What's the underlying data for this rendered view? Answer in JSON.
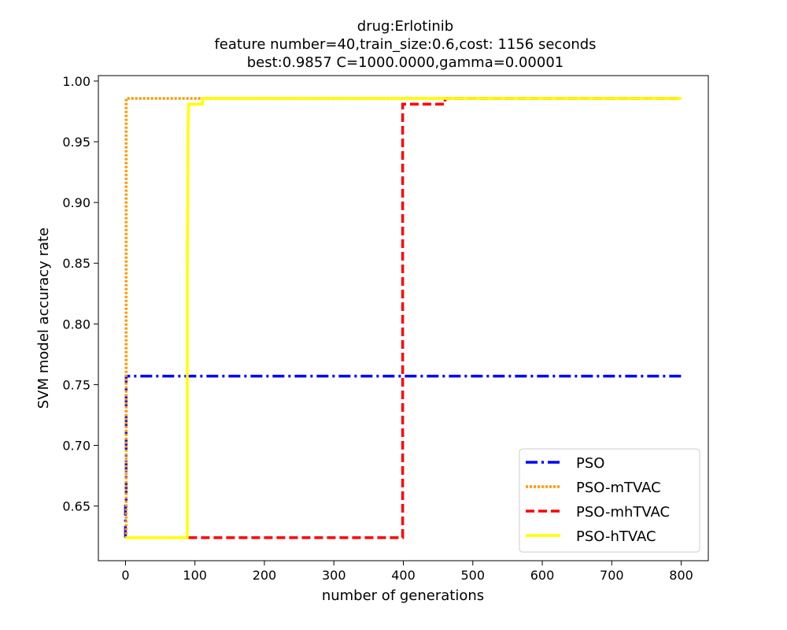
{
  "chart_data": {
    "type": "line",
    "title_lines": [
      "drug:Erlotinib",
      "feature number=40,train_size:0.6,cost: 1156 seconds",
      "best:0.9857  C=1000.0000,gamma=0.00001"
    ],
    "xlabel": "number of generations",
    "ylabel": "SVM model accuracy rate",
    "xlim": [
      -39,
      839
    ],
    "ylim": [
      0.605,
      1.0045
    ],
    "xticks": [
      0,
      100,
      200,
      300,
      400,
      500,
      600,
      700,
      800
    ],
    "yticks": [
      0.65,
      0.7,
      0.75,
      0.8,
      0.85,
      0.9,
      0.95,
      1.0
    ],
    "ytick_labels": [
      "0.65",
      "0.70",
      "0.75",
      "0.80",
      "0.85",
      "0.90",
      "0.95",
      "1.00"
    ],
    "grid": false,
    "legend_position": "lower right",
    "series": [
      {
        "name": "PSO",
        "color": "#0000ff",
        "style": "dashdot",
        "points": [
          [
            0,
            0.624
          ],
          [
            0,
            0.65
          ],
          [
            1,
            0.65
          ],
          [
            1,
            0.757
          ],
          [
            800,
            0.757
          ]
        ]
      },
      {
        "name": "PSO-mTVAC",
        "color": "#ff9900",
        "style": "dotted",
        "points": [
          [
            0,
            0.624
          ],
          [
            1,
            0.624
          ],
          [
            1,
            0.9857
          ],
          [
            800,
            0.9857
          ]
        ]
      },
      {
        "name": "PSO-mhTVAC",
        "color": "#ff0000",
        "style": "dashed",
        "points": [
          [
            0,
            0.624
          ],
          [
            399,
            0.624
          ],
          [
            399,
            0.981
          ],
          [
            460,
            0.981
          ],
          [
            460,
            0.9857
          ],
          [
            800,
            0.9857
          ]
        ]
      },
      {
        "name": "PSO-hTVAC",
        "color": "#ffff00",
        "style": "solid",
        "points": [
          [
            0,
            0.624
          ],
          [
            89,
            0.624
          ],
          [
            89,
            0.84
          ],
          [
            90,
            0.96
          ],
          [
            91,
            0.981
          ],
          [
            111,
            0.981
          ],
          [
            111,
            0.9857
          ],
          [
            800,
            0.9857
          ]
        ]
      }
    ]
  }
}
